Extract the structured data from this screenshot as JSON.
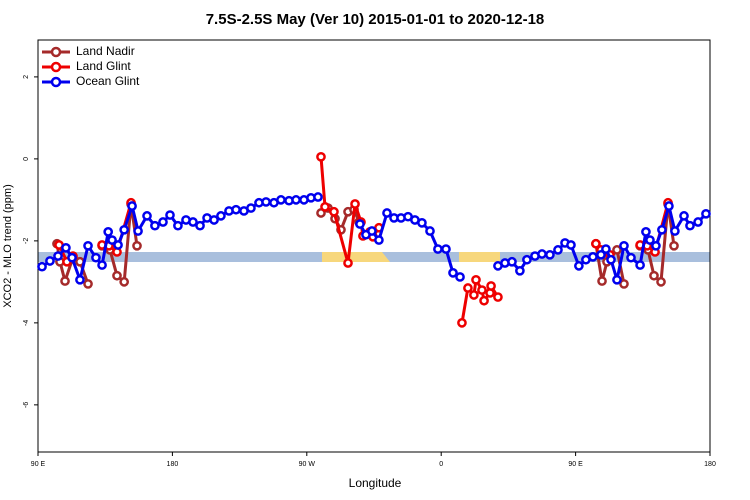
{
  "chart_data": {
    "type": "line",
    "title": "7.5S-2.5S May (Ver 10)   2015-01-01 to 2020-12-18",
    "x_label": "Longitude",
    "y_label": "XCO2 - MLO trend (ppm)",
    "xlim": [
      90,
      540
    ],
    "ylim": [
      -7.15,
      2.9
    ],
    "xticks": [
      {
        "value": 90,
        "label": "90 E"
      },
      180,
      {
        "value": 270,
        "label": "90 W"
      },
      {
        "value": 360,
        "label": "0"
      },
      {
        "value": 450,
        "label": "90 E"
      },
      {
        "value": 540,
        "label": "180"
      }
    ],
    "yticks": [
      -6,
      -4,
      -2,
      0,
      2
    ],
    "legend": "top-left",
    "series": [
      {
        "name": "Land Nadir",
        "color": "#a52a2a",
        "x": [
          102.7,
          104.7,
          108.1,
          113.4,
          118.1,
          123.5,
          null,
          132.9,
          138.2,
          142.9,
          147.7,
          152.3,
          156.3,
          null,
          279.5,
          284.2,
          288.9,
          292.9,
          297.6,
          301.6,
          305.0,
          null,
          463.6,
          467.7,
          471.0,
          477.7,
          482.4,
          null,
          493.2,
          498.5,
          502.5,
          507.2,
          511.9,
          515.9
        ],
        "values": [
          -2.07,
          -2.51,
          -2.98,
          -2.41,
          -2.51,
          -3.05,
          null,
          -2.12,
          -2.22,
          -2.85,
          -3.0,
          -1.1,
          -2.12,
          null,
          -1.32,
          -1.2,
          -1.46,
          -1.73,
          -1.29,
          -1.24,
          -1.54,
          null,
          -2.07,
          -2.98,
          -2.51,
          -2.22,
          -3.05,
          null,
          -2.12,
          -2.22,
          -2.85,
          -3.0,
          -1.1,
          -2.12
        ]
      },
      {
        "name": "Land Glint",
        "color": "#ee0000",
        "x": [
          104.1,
          109.4,
          113.4,
          null,
          132.9,
          137.5,
          142.9,
          152.3,
          null,
          279.5,
          282.2,
          288.2,
          297.6,
          302.3,
          306.3,
          307.6,
          312.3,
          314.3,
          318.3,
          null,
          373.9,
          377.9,
          381.9,
          383.3,
          387.3,
          388.7,
          392.7,
          393.4,
          398.0,
          null,
          463.6,
          467.0,
          473.0,
          null,
          493.2,
          497.9,
          503.2,
          511.9
        ],
        "values": [
          -2.1,
          -2.51,
          -2.37,
          null,
          -2.1,
          -2.12,
          -2.27,
          -1.07,
          null,
          0.05,
          -1.17,
          -1.29,
          -2.54,
          -1.1,
          -1.54,
          -1.88,
          -1.78,
          -1.9,
          -1.68,
          null,
          -4.0,
          -3.15,
          -3.32,
          -2.95,
          -3.2,
          -3.46,
          -3.27,
          -3.1,
          -3.37,
          null,
          -2.07,
          -2.22,
          -2.34,
          null,
          -2.1,
          -2.12,
          -2.27,
          -1.07
        ]
      },
      {
        "name": "Ocean Glint",
        "color": "#0000ee",
        "x": [
          92.7,
          98.0,
          103.4,
          108.7,
          112.8,
          118.1,
          123.5,
          128.8,
          132.9,
          137.0,
          139.6,
          143.6,
          147.7,
          153.0,
          157.0,
          163.0,
          168.3,
          173.7,
          178.4,
          183.7,
          189.1,
          193.8,
          198.5,
          203.2,
          207.9,
          212.5,
          217.9,
          222.6,
          227.9,
          232.6,
          238.0,
          242.7,
          248.0,
          252.7,
          258.1,
          262.8,
          268.1,
          272.8,
          277.5,
          null,
          305.6,
          309.6,
          313.6,
          318.3,
          323.7,
          328.4,
          333.1,
          337.8,
          342.4,
          347.1,
          352.5,
          357.8,
          363.2,
          367.9,
          372.6,
          null,
          398.0,
          402.7,
          407.4,
          412.7,
          417.4,
          422.8,
          427.5,
          432.8,
          438.2,
          442.9,
          446.9,
          452.2,
          456.9,
          461.6,
          467.0,
          470.3,
          473.7,
          477.7,
          482.4,
          487.1,
          493.2,
          497.1,
          499.8,
          503.8,
          507.8,
          512.5,
          516.5,
          522.6,
          526.6,
          532.0,
          537.3
        ],
        "values": [
          -2.63,
          -2.49,
          -2.37,
          -2.17,
          -2.41,
          -2.95,
          -2.12,
          -2.41,
          -2.59,
          -1.78,
          -1.98,
          -2.1,
          -1.73,
          -1.15,
          -1.76,
          -1.39,
          -1.63,
          -1.54,
          -1.37,
          -1.63,
          -1.49,
          -1.54,
          -1.63,
          -1.44,
          -1.49,
          -1.39,
          -1.27,
          -1.24,
          -1.27,
          -1.2,
          -1.07,
          -1.05,
          -1.07,
          -1.0,
          -1.02,
          -1.0,
          -1.0,
          -0.95,
          -0.93,
          null,
          -1.59,
          -1.85,
          -1.76,
          -1.98,
          -1.32,
          -1.44,
          -1.44,
          -1.41,
          -1.49,
          -1.56,
          -1.76,
          -2.2,
          -2.2,
          -2.78,
          -2.88,
          null,
          -2.61,
          -2.54,
          -2.51,
          -2.73,
          -2.46,
          -2.37,
          -2.32,
          -2.34,
          -2.22,
          -2.05,
          -2.1,
          -2.61,
          -2.46,
          -2.39,
          -2.34,
          -2.2,
          -2.46,
          -2.95,
          -2.12,
          -2.41,
          -2.59,
          -1.78,
          -1.98,
          -2.12,
          -1.73,
          -1.15,
          -1.76,
          -1.39,
          -1.63,
          -1.54,
          -1.34
        ]
      }
    ]
  }
}
